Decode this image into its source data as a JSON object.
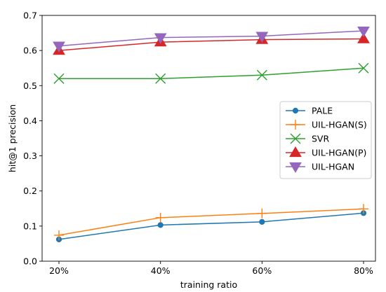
{
  "chart_data": {
    "type": "line",
    "title": "",
    "xlabel": "training ratio",
    "ylabel": "hit@1 precision",
    "categories": [
      "20%",
      "40%",
      "60%",
      "80%"
    ],
    "ylim": [
      0.0,
      0.7
    ],
    "yticks": [
      "0.0",
      "0.1",
      "0.2",
      "0.3",
      "0.4",
      "0.5",
      "0.6",
      "0.7"
    ],
    "grid": false,
    "legend_position": "center-right",
    "series": [
      {
        "name": "PALE",
        "values": [
          0.062,
          0.103,
          0.112,
          0.137
        ],
        "color": "#1f77b4",
        "marker": "circle"
      },
      {
        "name": "UIL-HGAN(S)",
        "values": [
          0.074,
          0.124,
          0.136,
          0.149
        ],
        "color": "#ff7f0e",
        "marker": "plus"
      },
      {
        "name": "SVR",
        "values": [
          0.52,
          0.52,
          0.53,
          0.55
        ],
        "color": "#2ca02c",
        "marker": "x"
      },
      {
        "name": "UIL-HGAN(P)",
        "values": [
          0.6,
          0.624,
          0.631,
          0.633
        ],
        "color": "#d62728",
        "marker": "triangle-up"
      },
      {
        "name": "UIL-HGAN",
        "values": [
          0.613,
          0.637,
          0.641,
          0.656
        ],
        "color": "#9467bd",
        "marker": "triangle-down"
      }
    ]
  }
}
